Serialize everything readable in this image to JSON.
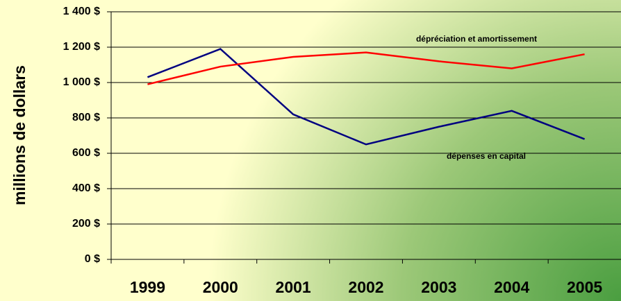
{
  "chart_data": {
    "type": "line",
    "y_label": "millions de dollars",
    "categories": [
      "1999",
      "2000",
      "2001",
      "2002",
      "2003",
      "2004",
      "2005"
    ],
    "series": [
      {
        "name": "dépenses en capital",
        "color": "#000080",
        "values": [
          1030,
          1190,
          820,
          650,
          750,
          840,
          680
        ]
      },
      {
        "name": "dépréciation et amortissement",
        "color": "#ff0000",
        "values": [
          990,
          1090,
          1145,
          1170,
          1120,
          1080,
          1160
        ]
      }
    ],
    "ylim": [
      0,
      1400
    ],
    "yticks": [
      {
        "value": 0,
        "label": "0 $"
      },
      {
        "value": 200,
        "label": "200 $"
      },
      {
        "value": 400,
        "label": "400 $"
      },
      {
        "value": 600,
        "label": "600 $"
      },
      {
        "value": 800,
        "label": "800 $"
      },
      {
        "value": 1000,
        "label": "1 000 $"
      },
      {
        "value": 1200,
        "label": "1 200 $"
      },
      {
        "value": 1400,
        "label": "1 400 $"
      }
    ],
    "grid": true
  }
}
